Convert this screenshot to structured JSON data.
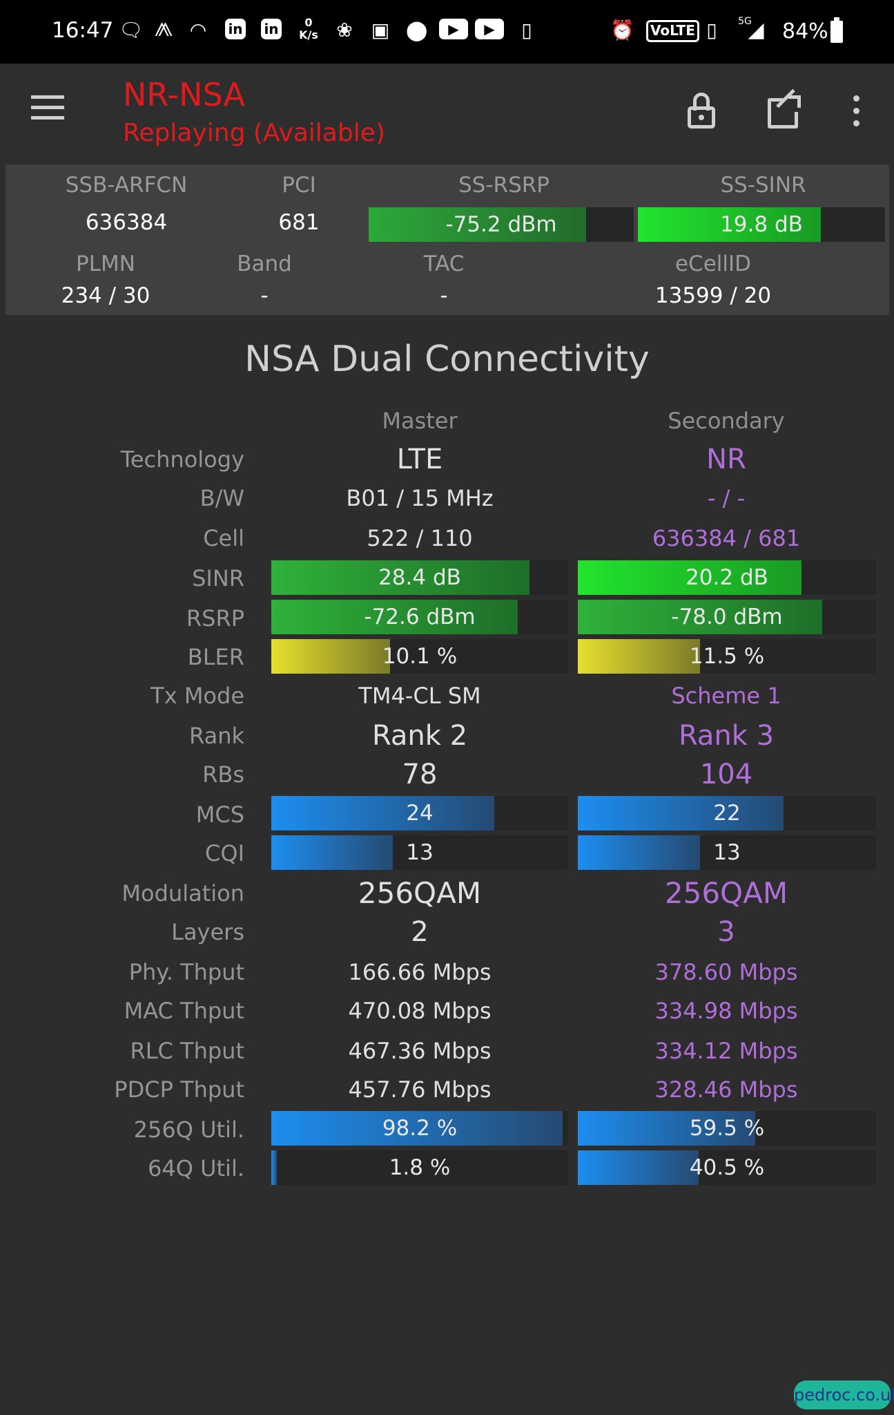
{
  "status_bar": {
    "time": "16:47",
    "icons": [
      "chat-icon",
      "voicemail-icon",
      "wifi-icon",
      "linkedin-icon",
      "linkedin-icon",
      "network-speed-icon",
      "app-icon",
      "image-icon",
      "location-icon",
      "youtube-icon",
      "youtube-icon",
      "download-icon",
      "alarm-icon",
      "volte-icon",
      "vibrate-icon",
      "5g-signal-icon",
      "battery-icon"
    ],
    "speed_value": "0",
    "speed_unit": "K/s",
    "volte_label": "VoLTE",
    "net_label": "5G",
    "battery": "84%"
  },
  "toolbar": {
    "title": "NR-NSA",
    "subtitle": "Replaying (Available)"
  },
  "summary": {
    "labels": {
      "ssb_arfcn": "SSB-ARFCN",
      "pci": "PCI",
      "ss_rsrp": "SS-RSRP",
      "ss_sinr": "SS-SINR",
      "plmn": "PLMN",
      "band": "Band",
      "tac": "TAC",
      "ecellid": "eCellID"
    },
    "values": {
      "ssb_arfcn": "636384",
      "pci": "681",
      "ss_rsrp": "-75.2 dBm",
      "ss_sinr": "19.8 dB",
      "plmn": "234 / 30",
      "band": "-",
      "tac": "-",
      "ecellid": "13599 / 20"
    },
    "levels": {
      "ss_rsrp": 0.82,
      "ss_sinr": 0.74
    }
  },
  "section_title": "NSA Dual Connectivity",
  "columns": {
    "master": "Master",
    "secondary": "Secondary"
  },
  "rows": {
    "technology": {
      "label": "Technology",
      "master": "LTE",
      "secondary": "NR"
    },
    "bw": {
      "label": "B/W",
      "master": "B01 / 15 MHz",
      "secondary": "- / -"
    },
    "cell": {
      "label": "Cell",
      "master": "522 / 110",
      "secondary": "636384 / 681"
    },
    "sinr": {
      "label": "SINR",
      "master": "28.4 dB",
      "secondary": "20.2 dB",
      "master_level": 0.87,
      "secondary_level": 0.75
    },
    "rsrp": {
      "label": "RSRP",
      "master": "-72.6 dBm",
      "secondary": "-78.0 dBm",
      "master_level": 0.83,
      "secondary_level": 0.82
    },
    "bler": {
      "label": "BLER",
      "master": "10.1 %",
      "secondary": "11.5 %",
      "master_level": 0.4,
      "secondary_level": 0.41
    },
    "tx_mode": {
      "label": "Tx Mode",
      "master": "TM4-CL SM",
      "secondary": "Scheme 1"
    },
    "rank": {
      "label": "Rank",
      "master": "Rank 2",
      "secondary": "Rank 3"
    },
    "rbs": {
      "label": "RBs",
      "master": "78",
      "secondary": "104"
    },
    "mcs": {
      "label": "MCS",
      "master": "24",
      "secondary": "22",
      "master_level": 0.75,
      "secondary_level": 0.69
    },
    "cqi": {
      "label": "CQI",
      "master": "13",
      "secondary": "13",
      "master_level": 0.41,
      "secondary_level": 0.41
    },
    "modulation": {
      "label": "Modulation",
      "master": "256QAM",
      "secondary": "256QAM"
    },
    "layers": {
      "label": "Layers",
      "master": "2",
      "secondary": "3"
    },
    "phy_thput": {
      "label": "Phy. Thput",
      "master": "166.66 Mbps",
      "secondary": "378.60 Mbps"
    },
    "mac_thput": {
      "label": "MAC Thput",
      "master": "470.08 Mbps",
      "secondary": "334.98 Mbps"
    },
    "rlc_thput": {
      "label": "RLC Thput",
      "master": "467.36 Mbps",
      "secondary": "334.12 Mbps"
    },
    "pdcp_thput": {
      "label": "PDCP Thput",
      "master": "457.76 Mbps",
      "secondary": "328.46 Mbps"
    },
    "util_256q": {
      "label": "256Q Util.",
      "master": "98.2 %",
      "secondary": "59.5 %",
      "master_level": 0.982,
      "secondary_level": 0.595
    },
    "util_64q": {
      "label": "64Q Util.",
      "master": "1.8 %",
      "secondary": "40.5 %",
      "master_level": 0.018,
      "secondary_level": 0.405
    }
  },
  "watermark": "pedroc.co.uk"
}
